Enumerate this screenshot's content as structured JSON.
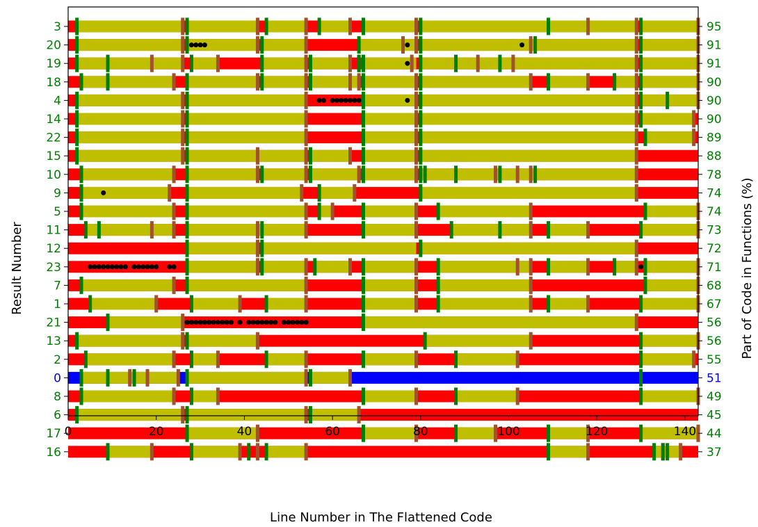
{
  "chart_data": {
    "type": "bar",
    "title": "",
    "xlabel": "Line Number in The Flattened Code",
    "ylabel_left": "Result Number",
    "ylabel_right": "Part of Code in Functions (%)",
    "xlim": [
      0,
      143
    ],
    "xticks": [
      0,
      20,
      40,
      60,
      80,
      100,
      120,
      140
    ],
    "grid": false,
    "colors": {
      "function_segment": "#bfbf00",
      "non_function_segment": "#ff0000",
      "reference_segment": "#0000ff",
      "function_start_marker": "#008000",
      "function_end_marker": "#a0522d",
      "dot": "#000000",
      "label_default": "#008000",
      "label_reference": "#0000ff"
    },
    "rows": [
      {
        "result": "3",
        "percent": "95",
        "segments": [
          [
            2,
            26
          ],
          [
            27,
            43
          ],
          [
            45,
            54
          ],
          [
            57,
            64
          ],
          [
            67,
            79
          ],
          [
            80,
            129
          ],
          [
            130,
            143
          ]
        ],
        "starts": [
          2,
          27,
          45,
          57,
          67,
          80,
          109,
          130
        ],
        "ends": [
          26,
          43,
          54,
          64,
          79,
          118,
          129,
          143
        ],
        "dots": []
      },
      {
        "result": "20",
        "percent": "91",
        "segments": [
          [
            2,
            26
          ],
          [
            27,
            43
          ],
          [
            44,
            54
          ],
          [
            66,
            79
          ],
          [
            80,
            129
          ],
          [
            130,
            143
          ]
        ],
        "starts": [
          2,
          27,
          44,
          66,
          80,
          106,
          130
        ],
        "ends": [
          26,
          43,
          54,
          76,
          79,
          105,
          129,
          143
        ],
        "dots": [
          28,
          29,
          30,
          31,
          77,
          103
        ]
      },
      {
        "result": "19",
        "percent": "91",
        "segments": [
          [
            2,
            26
          ],
          [
            28,
            34
          ],
          [
            44,
            54
          ],
          [
            55,
            64
          ],
          [
            67,
            79
          ],
          [
            80,
            129
          ],
          [
            130,
            143
          ]
        ],
        "starts": [
          2,
          9,
          28,
          44,
          55,
          66,
          67,
          80,
          88,
          98,
          130
        ],
        "ends": [
          19,
          26,
          34,
          54,
          64,
          66,
          78,
          93,
          101,
          129,
          143
        ],
        "dots": [
          77
        ]
      },
      {
        "result": "18",
        "percent": "90",
        "segments": [
          [
            3,
            24
          ],
          [
            27,
            43
          ],
          [
            44,
            54
          ],
          [
            55,
            66
          ],
          [
            67,
            79
          ],
          [
            80,
            105
          ],
          [
            109,
            118
          ],
          [
            124,
            129
          ],
          [
            130,
            143
          ]
        ],
        "starts": [
          3,
          9,
          27,
          44,
          55,
          67,
          80,
          109,
          124,
          130
        ],
        "ends": [
          24,
          43,
          54,
          64,
          66,
          79,
          105,
          118,
          129,
          143
        ],
        "dots": []
      },
      {
        "result": "4",
        "percent": "90",
        "segments": [
          [
            2,
            26
          ],
          [
            27,
            54
          ],
          [
            67,
            79
          ],
          [
            80,
            129
          ],
          [
            130,
            143
          ]
        ],
        "starts": [
          2,
          27,
          67,
          80,
          130,
          136
        ],
        "ends": [
          26,
          54,
          79,
          129,
          143
        ],
        "dots": [
          57,
          58,
          60,
          61,
          62,
          63,
          64,
          65,
          66,
          77
        ]
      },
      {
        "result": "14",
        "percent": "90",
        "segments": [
          [
            2,
            26
          ],
          [
            27,
            54
          ],
          [
            67,
            79
          ],
          [
            80,
            129
          ],
          [
            130,
            142
          ]
        ],
        "starts": [
          2,
          27,
          67,
          80,
          130
        ],
        "ends": [
          26,
          54,
          79,
          129,
          142
        ],
        "dots": []
      },
      {
        "result": "22",
        "percent": "89",
        "segments": [
          [
            2,
            26
          ],
          [
            27,
            54
          ],
          [
            67,
            79
          ],
          [
            80,
            129
          ],
          [
            131,
            142
          ]
        ],
        "starts": [
          2,
          27,
          67,
          80,
          131
        ],
        "ends": [
          26,
          54,
          79,
          129,
          142
        ],
        "dots": []
      },
      {
        "result": "15",
        "percent": "88",
        "segments": [
          [
            2,
            26
          ],
          [
            27,
            54
          ],
          [
            55,
            64
          ],
          [
            67,
            79
          ],
          [
            80,
            129
          ]
        ],
        "starts": [
          2,
          27,
          55,
          67,
          80
        ],
        "ends": [
          26,
          43,
          54,
          64,
          79,
          129
        ],
        "dots": []
      },
      {
        "result": "10",
        "percent": "78",
        "segments": [
          [
            3,
            24
          ],
          [
            27,
            43
          ],
          [
            44,
            54
          ],
          [
            55,
            66
          ],
          [
            67,
            79
          ],
          [
            80,
            129
          ]
        ],
        "starts": [
          3,
          27,
          44,
          55,
          67,
          80,
          81,
          88,
          98,
          106
        ],
        "ends": [
          24,
          43,
          54,
          66,
          79,
          97,
          102,
          105,
          129
        ],
        "dots": []
      },
      {
        "result": "9",
        "percent": "74",
        "segments": [
          [
            3,
            23
          ],
          [
            27,
            53
          ],
          [
            57,
            65
          ],
          [
            80,
            129
          ]
        ],
        "starts": [
          3,
          27,
          57,
          80
        ],
        "ends": [
          23,
          53,
          65,
          129
        ],
        "dots": [
          8
        ]
      },
      {
        "result": "5",
        "percent": "74",
        "segments": [
          [
            3,
            24
          ],
          [
            27,
            54
          ],
          [
            57,
            60
          ],
          [
            67,
            79
          ],
          [
            84,
            105
          ],
          [
            131,
            143
          ]
        ],
        "starts": [
          3,
          27,
          57,
          67,
          84,
          131
        ],
        "ends": [
          24,
          54,
          60,
          79,
          105,
          143
        ],
        "dots": []
      },
      {
        "result": "11",
        "percent": "73",
        "segments": [
          [
            4,
            24
          ],
          [
            27,
            54
          ],
          [
            67,
            79
          ],
          [
            87,
            105
          ],
          [
            109,
            118
          ],
          [
            130,
            143
          ]
        ],
        "starts": [
          4,
          7,
          27,
          44,
          67,
          87,
          98,
          109,
          130
        ],
        "ends": [
          19,
          24,
          43,
          54,
          79,
          105,
          118,
          143
        ],
        "dots": []
      },
      {
        "result": "12",
        "percent": "72",
        "segments": [
          [
            27,
            43
          ],
          [
            44,
            79
          ],
          [
            80,
            129
          ]
        ],
        "starts": [
          27,
          44,
          80
        ],
        "ends": [
          43,
          129
        ],
        "dots": []
      },
      {
        "result": "23",
        "percent": "71",
        "segments": [
          [
            27,
            43
          ],
          [
            44,
            54
          ],
          [
            56,
            64
          ],
          [
            67,
            79
          ],
          [
            84,
            105
          ],
          [
            109,
            118
          ],
          [
            124,
            129
          ],
          [
            131,
            143
          ]
        ],
        "starts": [
          27,
          44,
          56,
          67,
          84,
          109,
          124,
          131
        ],
        "ends": [
          43,
          54,
          64,
          79,
          102,
          105,
          118,
          129,
          143
        ],
        "dots": [
          5,
          6,
          7,
          8,
          9,
          10,
          11,
          12,
          13,
          15,
          16,
          17,
          18,
          19,
          20,
          23,
          24,
          130
        ]
      },
      {
        "result": "7",
        "percent": "68",
        "segments": [
          [
            3,
            24
          ],
          [
            27,
            54
          ],
          [
            67,
            79
          ],
          [
            84,
            105
          ],
          [
            131,
            143
          ]
        ],
        "starts": [
          3,
          27,
          67,
          84,
          131
        ],
        "ends": [
          24,
          54,
          79,
          105,
          143
        ],
        "dots": []
      },
      {
        "result": "1",
        "percent": "67",
        "segments": [
          [
            5,
            20
          ],
          [
            28,
            39
          ],
          [
            45,
            54
          ],
          [
            67,
            79
          ],
          [
            84,
            105
          ],
          [
            109,
            118
          ],
          [
            130,
            143
          ]
        ],
        "starts": [
          5,
          28,
          45,
          67,
          84,
          109,
          130
        ],
        "ends": [
          20,
          39,
          54,
          79,
          105,
          118,
          143
        ],
        "dots": []
      },
      {
        "result": "21",
        "percent": "56",
        "segments": [
          [
            9,
            26
          ],
          [
            67,
            129
          ]
        ],
        "starts": [
          9,
          67
        ],
        "ends": [
          26,
          129
        ],
        "dots": [
          27,
          28,
          29,
          30,
          31,
          32,
          33,
          34,
          35,
          36,
          37,
          39,
          41,
          42,
          43,
          44,
          45,
          46,
          47,
          49,
          50,
          51,
          52,
          53,
          54
        ]
      },
      {
        "result": "13",
        "percent": "56",
        "segments": [
          [
            2,
            26
          ],
          [
            27,
            43
          ],
          [
            81,
            105
          ],
          [
            130,
            143
          ]
        ],
        "starts": [
          2,
          27,
          81,
          130
        ],
        "ends": [
          26,
          43,
          105,
          143
        ],
        "dots": []
      },
      {
        "result": "2",
        "percent": "55",
        "segments": [
          [
            4,
            24
          ],
          [
            28,
            34
          ],
          [
            45,
            54
          ],
          [
            67,
            79
          ],
          [
            88,
            102
          ],
          [
            130,
            142
          ]
        ],
        "starts": [
          4,
          28,
          45,
          67,
          88,
          130
        ],
        "ends": [
          24,
          34,
          54,
          79,
          102,
          142
        ],
        "dots": []
      },
      {
        "result": "0",
        "percent": "51",
        "reference": true,
        "segments": [
          [
            3,
            25
          ],
          [
            27,
            54
          ],
          [
            55,
            64
          ]
        ],
        "starts": [
          3,
          9,
          15,
          27,
          55,
          130
        ],
        "ends": [
          14,
          18,
          25,
          54,
          64
        ],
        "dots": []
      },
      {
        "result": "8",
        "percent": "49",
        "segments": [
          [
            3,
            24
          ],
          [
            28,
            34
          ],
          [
            67,
            79
          ],
          [
            88,
            102
          ],
          [
            130,
            143
          ]
        ],
        "starts": [
          3,
          28,
          67,
          88,
          130
        ],
        "ends": [
          24,
          34,
          79,
          102,
          143
        ],
        "dots": []
      },
      {
        "result": "6",
        "percent": "45",
        "segments": [
          [
            2,
            26
          ],
          [
            27,
            54
          ],
          [
            55,
            66
          ]
        ],
        "starts": [
          2,
          27,
          55
        ],
        "ends": [
          26,
          54,
          66
        ],
        "dots": []
      },
      {
        "result": "17",
        "percent": "44",
        "segments": [
          [
            27,
            43
          ],
          [
            67,
            79
          ],
          [
            88,
            97
          ],
          [
            109,
            118
          ],
          [
            130,
            143
          ]
        ],
        "starts": [
          27,
          67,
          88,
          109,
          130
        ],
        "ends": [
          43,
          79,
          97,
          118,
          143
        ],
        "dots": []
      },
      {
        "result": "16",
        "percent": "37",
        "segments": [
          [
            9,
            19
          ],
          [
            28,
            39
          ],
          [
            45,
            54
          ],
          [
            109,
            118
          ],
          [
            133,
            139
          ]
        ],
        "starts": [
          9,
          28,
          41,
          45,
          109,
          133,
          135,
          136
        ],
        "ends": [
          19,
          39,
          43,
          54,
          118,
          135,
          139
        ],
        "dots": []
      }
    ]
  }
}
